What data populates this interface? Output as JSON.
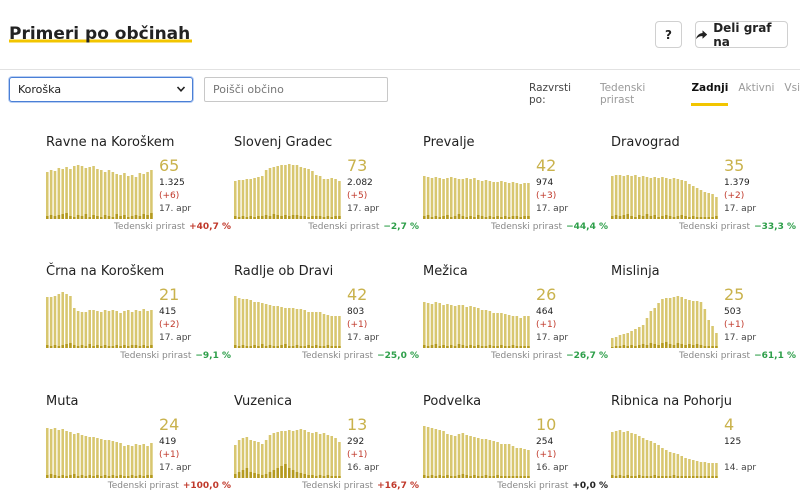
{
  "header": {
    "title": "Primeri po občinah",
    "help_label": "?",
    "share_label": "Deli graf na"
  },
  "controls": {
    "region_selected": "Koroška",
    "search_placeholder": "Poišči občino",
    "sort_label": "Razvrsti po:",
    "sort_options": [
      "Tedenski prirast",
      "Zadnji",
      "Aktivni",
      "Vsi"
    ],
    "sort_active": 1
  },
  "colors": {
    "bar_light": "#d8c770",
    "bar_dark": "#b49a1f",
    "accent": "#f2c500"
  },
  "growth_label": "Tedenski prirast",
  "cards": [
    {
      "name": "Ravne na Koroškem",
      "active": "65",
      "total": "1.325",
      "delta": "(+6)",
      "date": "17. apr",
      "growth": "+40,7 %",
      "trend": "pos",
      "bars": [
        47,
        49,
        48,
        51,
        50,
        52,
        50,
        53,
        54,
        53,
        51,
        52,
        53,
        50,
        49,
        47,
        49,
        47,
        45,
        44,
        46,
        43,
        44,
        42,
        46,
        45,
        47,
        49
      ],
      "new": [
        3,
        4,
        3,
        4,
        5,
        6,
        3,
        2,
        4,
        3,
        5,
        2,
        4,
        3,
        2,
        4,
        3,
        2,
        5,
        3,
        4,
        2,
        3,
        4,
        3,
        5,
        4,
        6
      ]
    },
    {
      "name": "Slovenj Gradec",
      "active": "73",
      "total": "2.082",
      "delta": "(+5)",
      "date": "17. apr",
      "growth": "−2,7 %",
      "trend": "neg",
      "bars": [
        38,
        39,
        39,
        40,
        40,
        41,
        42,
        43,
        49,
        51,
        52,
        53,
        54,
        54,
        55,
        54,
        54,
        52,
        51,
        50,
        48,
        44,
        43,
        40,
        40,
        41,
        40,
        38
      ],
      "new": [
        3,
        2,
        3,
        2,
        3,
        2,
        3,
        3,
        4,
        3,
        5,
        4,
        3,
        4,
        3,
        4,
        4,
        3,
        3,
        2,
        3,
        3,
        3,
        2,
        3,
        2,
        3,
        3
      ]
    },
    {
      "name": "Prevalje",
      "active": "42",
      "total": "974",
      "delta": "(+3)",
      "date": "17. apr",
      "growth": "−44,4 %",
      "trend": "neg",
      "bars": [
        43,
        42,
        41,
        42,
        41,
        40,
        41,
        42,
        41,
        40,
        40,
        41,
        40,
        41,
        39,
        38,
        39,
        38,
        37,
        37,
        38,
        37,
        36,
        37,
        36,
        35,
        36,
        36
      ],
      "new": [
        3,
        4,
        2,
        3,
        2,
        3,
        4,
        2,
        3,
        5,
        3,
        2,
        3,
        2,
        4,
        3,
        2,
        3,
        2,
        3,
        2,
        3,
        2,
        3,
        3,
        2,
        3,
        3
      ]
    },
    {
      "name": "Dravograd",
      "active": "35",
      "total": "1.379",
      "delta": "(+2)",
      "date": "17. apr",
      "growth": "−33,3 %",
      "trend": "neg",
      "bars": [
        43,
        44,
        44,
        43,
        44,
        43,
        44,
        42,
        43,
        42,
        41,
        42,
        41,
        42,
        41,
        40,
        41,
        40,
        39,
        38,
        35,
        33,
        31,
        29,
        27,
        26,
        25,
        22
      ],
      "new": [
        3,
        4,
        3,
        4,
        5,
        3,
        2,
        4,
        3,
        5,
        3,
        4,
        2,
        3,
        4,
        3,
        2,
        3,
        4,
        3,
        2,
        3,
        2,
        2,
        2,
        2,
        2,
        3
      ]
    },
    {
      "name": "Črna na Koroškem",
      "active": "21",
      "total": "415",
      "delta": "(+2)",
      "date": "17. apr",
      "growth": "−9,1 %",
      "trend": "neg",
      "bars": [
        51,
        51,
        52,
        54,
        56,
        54,
        52,
        40,
        37,
        36,
        36,
        38,
        38,
        37,
        36,
        38,
        37,
        38,
        37,
        35,
        37,
        38,
        36,
        38,
        37,
        39,
        37,
        38
      ],
      "new": [
        3,
        2,
        3,
        2,
        3,
        4,
        5,
        3,
        2,
        3,
        2,
        4,
        2,
        3,
        2,
        3,
        2,
        2,
        3,
        2,
        3,
        2,
        3,
        3,
        2,
        3,
        2,
        3
      ]
    },
    {
      "name": "Radlje ob Dravi",
      "active": "42",
      "total": "803",
      "delta": "(+1)",
      "date": "17. apr",
      "growth": "−25,0 %",
      "trend": "neg",
      "bars": [
        52,
        50,
        49,
        49,
        48,
        46,
        46,
        45,
        44,
        43,
        42,
        42,
        41,
        40,
        40,
        40,
        39,
        39,
        38,
        36,
        36,
        36,
        36,
        34,
        33,
        32,
        32,
        32
      ],
      "new": [
        3,
        2,
        3,
        2,
        2,
        3,
        2,
        4,
        2,
        3,
        2,
        2,
        3,
        4,
        2,
        2,
        3,
        2,
        2,
        3,
        2,
        3,
        2,
        2,
        3,
        2,
        2,
        2
      ]
    },
    {
      "name": "Mežica",
      "active": "26",
      "total": "464",
      "delta": "(+1)",
      "date": "17. apr",
      "growth": "−26,7 %",
      "trend": "neg",
      "bars": [
        46,
        45,
        44,
        46,
        45,
        43,
        44,
        43,
        42,
        43,
        43,
        41,
        42,
        41,
        40,
        38,
        38,
        37,
        35,
        35,
        35,
        34,
        33,
        32,
        32,
        30,
        32,
        32
      ],
      "new": [
        3,
        2,
        3,
        4,
        2,
        3,
        2,
        3,
        2,
        4,
        3,
        2,
        3,
        2,
        3,
        2,
        2,
        3,
        2,
        2,
        3,
        2,
        2,
        3,
        2,
        2,
        2,
        2
      ]
    },
    {
      "name": "Mislinja",
      "active": "25",
      "total": "503",
      "delta": "(+1)",
      "date": "17. apr",
      "growth": "−61,1 %",
      "trend": "neg",
      "bars": [
        10,
        11,
        13,
        14,
        15,
        17,
        19,
        21,
        23,
        30,
        37,
        40,
        45,
        49,
        50,
        50,
        51,
        52,
        51,
        49,
        48,
        47,
        47,
        46,
        39,
        28,
        22,
        15
      ],
      "new": [
        1,
        2,
        2,
        3,
        2,
        3,
        2,
        3,
        4,
        3,
        5,
        4,
        3,
        5,
        6,
        4,
        3,
        5,
        4,
        3,
        4,
        3,
        4,
        3,
        2,
        2,
        2,
        2
      ]
    },
    {
      "name": "Muta",
      "active": "24",
      "total": "419",
      "delta": "(+1)",
      "date": "17. apr",
      "growth": "+100,0 %",
      "trend": "pos",
      "bars": [
        50,
        49,
        50,
        48,
        49,
        47,
        46,
        44,
        45,
        43,
        42,
        41,
        41,
        40,
        39,
        38,
        38,
        37,
        36,
        35,
        32,
        33,
        32,
        34,
        33,
        34,
        32,
        35
      ],
      "new": [
        3,
        4,
        3,
        2,
        3,
        2,
        3,
        4,
        2,
        3,
        2,
        3,
        2,
        3,
        2,
        3,
        2,
        3,
        2,
        3,
        2,
        2,
        3,
        2,
        3,
        2,
        3,
        3
      ]
    },
    {
      "name": "Vuzenica",
      "active": "13",
      "total": "292",
      "delta": "(+1)",
      "date": "16. apr",
      "growth": "+16,7 %",
      "trend": "pos",
      "bars": [
        33,
        38,
        40,
        41,
        38,
        37,
        36,
        34,
        38,
        43,
        45,
        46,
        47,
        47,
        48,
        47,
        48,
        49,
        48,
        46,
        45,
        46,
        44,
        45,
        43,
        42,
        40,
        36
      ],
      "new": [
        4,
        6,
        8,
        10,
        6,
        5,
        4,
        3,
        4,
        6,
        8,
        10,
        12,
        14,
        10,
        8,
        6,
        5,
        4,
        3,
        3,
        2,
        3,
        2,
        3,
        2,
        2,
        2
      ]
    },
    {
      "name": "Podvelka",
      "active": "10",
      "total": "254",
      "delta": "(+1)",
      "date": "16. apr",
      "growth": "+0,0 %",
      "trend": "zero",
      "bars": [
        52,
        51,
        50,
        49,
        48,
        47,
        44,
        43,
        42,
        44,
        45,
        43,
        42,
        41,
        40,
        39,
        39,
        38,
        37,
        36,
        34,
        34,
        34,
        32,
        30,
        30,
        29,
        28
      ],
      "new": [
        3,
        2,
        3,
        2,
        3,
        2,
        3,
        2,
        2,
        3,
        4,
        3,
        2,
        3,
        2,
        2,
        3,
        2,
        2,
        3,
        2,
        2,
        2,
        2,
        2,
        2,
        2,
        2
      ]
    },
    {
      "name": "Ribnica na Pohorju",
      "active": "4",
      "total": "125",
      "delta": "",
      "date": "14. apr",
      "growth": "",
      "trend": "zero",
      "bars": [
        46,
        47,
        48,
        46,
        47,
        45,
        44,
        42,
        40,
        38,
        37,
        35,
        33,
        30,
        28,
        26,
        25,
        24,
        22,
        20,
        19,
        18,
        17,
        16,
        16,
        15,
        15,
        15
      ],
      "new": [
        3,
        2,
        3,
        2,
        3,
        2,
        2,
        3,
        2,
        2,
        2,
        3,
        2,
        2,
        2,
        2,
        3,
        2,
        2,
        2,
        2,
        2,
        2,
        2,
        2,
        2,
        2,
        2
      ]
    }
  ]
}
